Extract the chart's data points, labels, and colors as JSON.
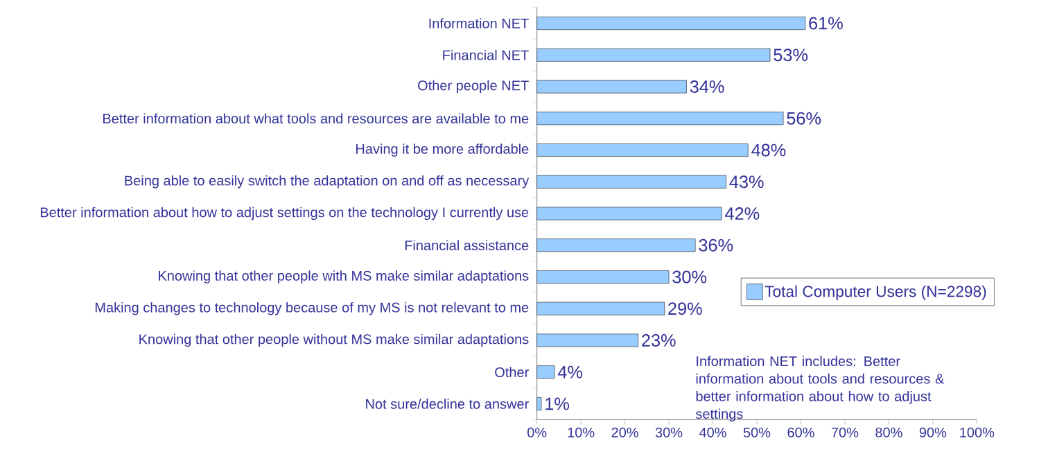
{
  "chart_data": {
    "type": "bar",
    "orientation": "horizontal",
    "categories": [
      "Information NET",
      "Financial NET",
      "Other people NET",
      "Better information about what tools and resources are available to me",
      "Having it be more affordable",
      "Being able to easily switch the adaptation on and off as necessary",
      "Better information about how to adjust settings on the technology I currently use",
      "Financial assistance",
      "Knowing that other people with MS make similar adaptations",
      "Making changes to technology because of my MS is not relevant to me",
      "Knowing that other people without MS make similar adaptations",
      "Other",
      "Not sure/decline to answer"
    ],
    "series": [
      {
        "name": "Total Computer Users (N=2298)",
        "color": "#99ccff",
        "values": [
          61,
          53,
          34,
          56,
          48,
          43,
          42,
          36,
          30,
          29,
          23,
          4,
          1
        ],
        "value_labels": [
          "61%",
          "53%",
          "34%",
          "56%",
          "48%",
          "43%",
          "42%",
          "36%",
          "30%",
          "29%",
          "23%",
          "4%",
          "1%"
        ]
      }
    ],
    "xlim": [
      0,
      100
    ],
    "xticks": [
      {
        "value": 0,
        "label": "0%"
      },
      {
        "value": 10,
        "label": "10%"
      },
      {
        "value": 20,
        "label": "20%"
      },
      {
        "value": 30,
        "label": "30%"
      },
      {
        "value": 40,
        "label": "40%"
      },
      {
        "value": 50,
        "label": "50%"
      },
      {
        "value": 60,
        "label": "60%"
      },
      {
        "value": 70,
        "label": "70%"
      },
      {
        "value": 80,
        "label": "80%"
      },
      {
        "value": 90,
        "label": "90%"
      },
      {
        "value": 100,
        "label": "100%"
      }
    ],
    "legend": "right",
    "annotations": [
      "Information NET includes: Better information about tools and resources & better information about how to adjust settings"
    ]
  }
}
